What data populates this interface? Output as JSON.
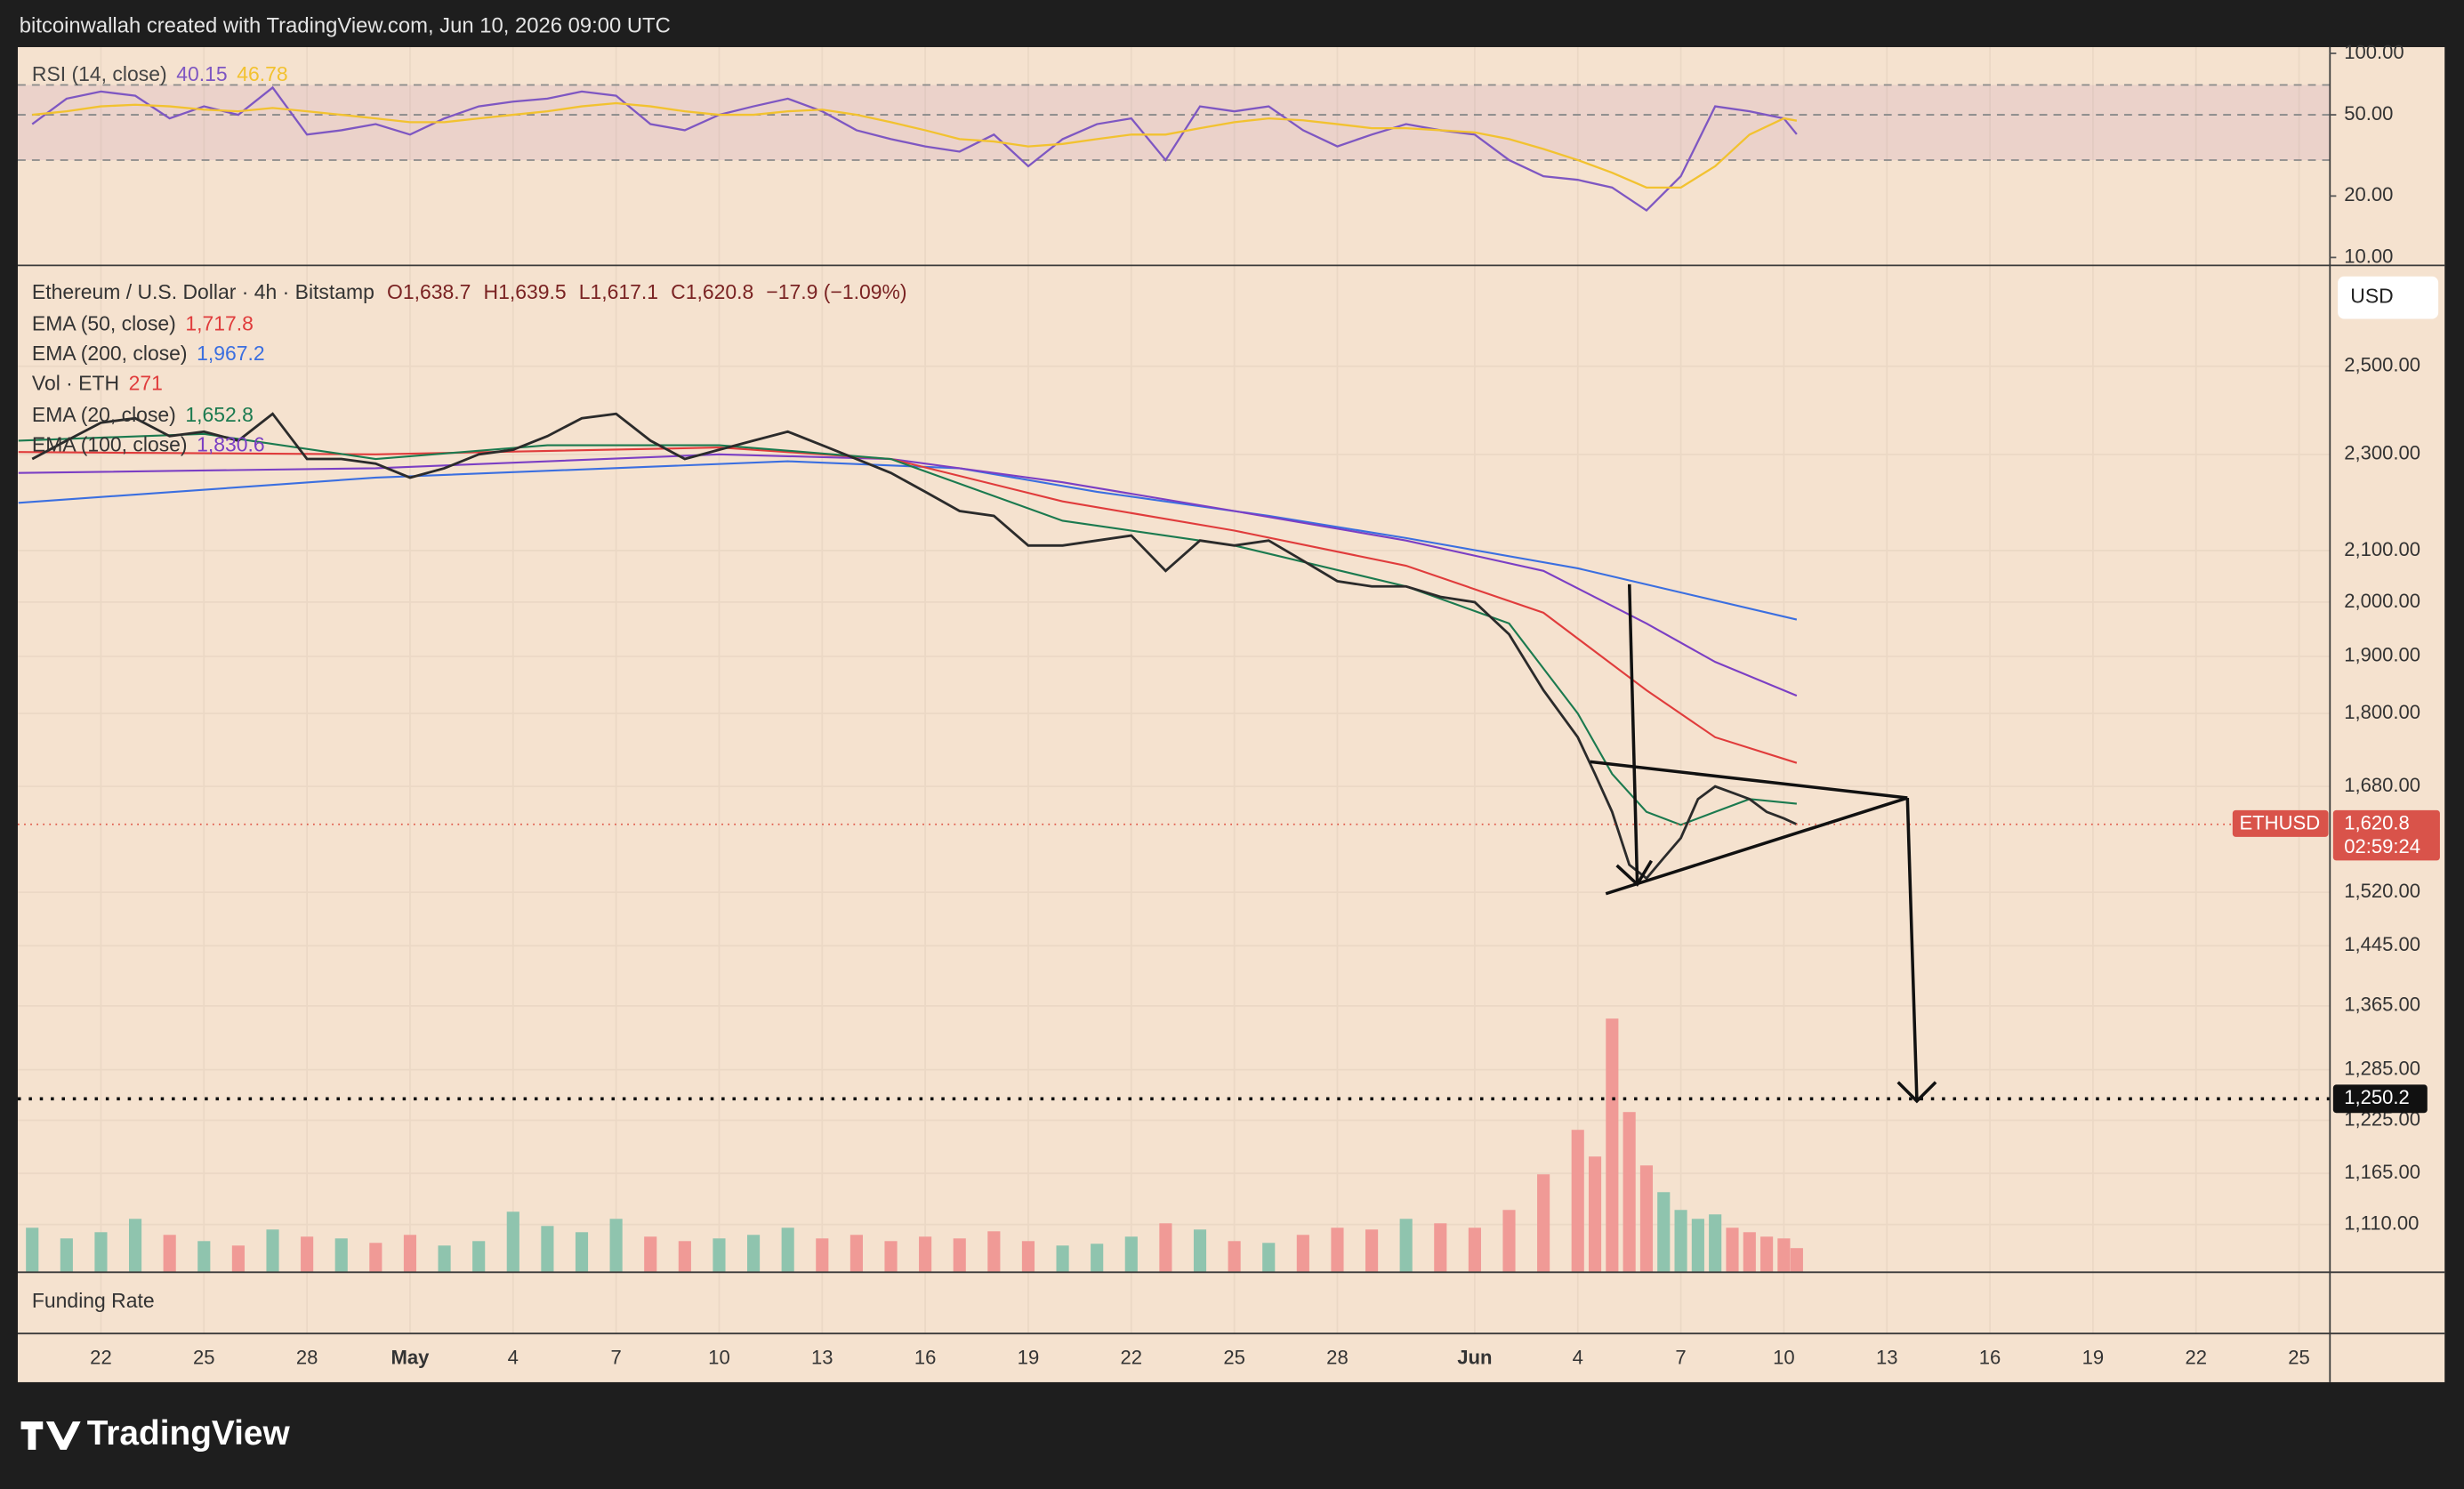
{
  "header": "bitcoinwallah created with TradingView.com, Jun 10, 2026 09:00 UTC",
  "footer_logo": "TradingView",
  "chart_data": {
    "type": "line",
    "title": "Ethereum / U.S. Dollar · 4h · Bitstamp",
    "ohlc_labels": [
      "O1,638.7",
      "H1,639.5",
      "L1,617.1",
      "C1,620.8",
      "−17.9 (−1.09%)"
    ],
    "currency": "USD",
    "countdown": "02:59:24",
    "funding_label": "Funding Rate",
    "xlim": [
      19.58,
      86.9
    ],
    "xticks": [
      22,
      25,
      28,
      {
        "value": 31,
        "label": "May"
      },
      {
        "value": 34,
        "label": "4"
      },
      {
        "value": 37,
        "label": "7"
      },
      {
        "value": 40,
        "label": "10"
      },
      {
        "value": 43,
        "label": "13"
      },
      {
        "value": 46,
        "label": "16"
      },
      {
        "value": 49,
        "label": "19"
      },
      {
        "value": 52,
        "label": "22"
      },
      {
        "value": 55,
        "label": "25"
      },
      {
        "value": 58,
        "label": "28"
      },
      {
        "value": 62,
        "label": "Jun"
      },
      {
        "value": 65,
        "label": "4"
      },
      {
        "value": 68,
        "label": "7"
      },
      {
        "value": 71,
        "label": "10"
      },
      {
        "value": 74,
        "label": "13"
      },
      {
        "value": 77,
        "label": "16"
      },
      {
        "value": 80,
        "label": "19"
      },
      {
        "value": 83,
        "label": "22"
      },
      {
        "value": 86,
        "label": "25"
      }
    ],
    "ylim": [
      1061,
      2746
    ],
    "log_scale": true,
    "grid": true,
    "yticks": [
      {
        "value": 2500,
        "label": "2,500.00"
      },
      {
        "value": 2300,
        "label": "2,300.00"
      },
      {
        "value": 2100,
        "label": "2,100.00"
      },
      {
        "value": 2000,
        "label": "2,000.00"
      },
      {
        "value": 1900,
        "label": "1,900.00"
      },
      {
        "value": 1800,
        "label": "1,800.00"
      },
      {
        "value": 1680,
        "label": "1,680.00"
      },
      {
        "value": 1520,
        "label": "1,520.00"
      },
      {
        "value": 1445,
        "label": "1,445.00"
      },
      {
        "value": 1365,
        "label": "1,365.00"
      },
      {
        "value": 1285,
        "label": "1,285.00"
      },
      {
        "value": 1225,
        "label": "1,225.00"
      },
      {
        "value": 1165,
        "label": "1,165.00"
      },
      {
        "value": 1110,
        "label": "1,110.00"
      }
    ],
    "target": {
      "value": 1250.2,
      "label": "1,250.2"
    },
    "series": [
      {
        "name": "ETHUSD",
        "color": "#2b2b2b",
        "last_label": "1,620.8",
        "x": [
          20,
          21,
          22,
          23,
          24,
          25,
          26,
          27,
          28,
          29,
          30,
          31,
          32,
          33,
          34,
          35,
          36,
          37,
          38,
          39,
          40,
          41,
          42,
          43,
          44,
          45,
          46,
          47,
          48,
          49,
          50,
          51,
          52,
          53,
          54,
          55,
          56,
          57,
          58,
          59,
          60,
          61,
          62,
          63,
          64,
          65,
          65.5,
          66,
          66.5,
          67,
          67.5,
          68,
          68.5,
          69,
          69.5,
          70,
          70.5,
          71,
          71.375
        ],
        "values": [
          2290,
          2330,
          2370,
          2380,
          2340,
          2350,
          2330,
          2390,
          2290,
          2290,
          2280,
          2250,
          2270,
          2300,
          2310,
          2340,
          2380,
          2390,
          2330,
          2290,
          2310,
          2330,
          2350,
          2320,
          2290,
          2260,
          2220,
          2180,
          2170,
          2110,
          2110,
          2120,
          2130,
          2060,
          2120,
          2110,
          2120,
          2080,
          2040,
          2030,
          2030,
          2010,
          2000,
          1940,
          1840,
          1760,
          1700,
          1640,
          1560,
          1540,
          1570,
          1600,
          1660,
          1680,
          1670,
          1660,
          1640,
          1630,
          1620.8
        ]
      },
      {
        "name": "EMA (20, close)",
        "color": "#1b7a4f",
        "legend_value": "1,652.8",
        "x": [
          19.6,
          25,
          30,
          35,
          40,
          45,
          50,
          55,
          60,
          63,
          65,
          66,
          67,
          68,
          69,
          70,
          71.375
        ],
        "values": [
          2330,
          2345,
          2290,
          2320,
          2320,
          2290,
          2160,
          2110,
          2030,
          1960,
          1800,
          1700,
          1640,
          1620,
          1640,
          1660,
          1652.8
        ]
      },
      {
        "name": "EMA (50, close)",
        "color": "#e03c3c",
        "legend_value": "1,717.8",
        "x": [
          19.6,
          30,
          40,
          45,
          50,
          55,
          60,
          64,
          67,
          69,
          71.375
        ],
        "values": [
          2305,
          2300,
          2315,
          2290,
          2200,
          2140,
          2070,
          1980,
          1840,
          1760,
          1717.8
        ]
      },
      {
        "name": "EMA (100, close)",
        "color": "#7b3fc4",
        "legend_value": "1,830.6",
        "x": [
          19.6,
          30,
          40,
          45,
          50,
          55,
          60,
          64,
          67,
          69,
          71.375
        ],
        "values": [
          2260,
          2270,
          2300,
          2290,
          2240,
          2180,
          2120,
          2060,
          1960,
          1890,
          1830.6
        ]
      },
      {
        "name": "EMA (200, close)",
        "color": "#3b6fe0",
        "legend_value": "1,967.2",
        "x": [
          19.6,
          30,
          42,
          47,
          51,
          56,
          60,
          65,
          71.375
        ],
        "values": [
          2197,
          2250,
          2285,
          2270,
          2220,
          2170,
          2125,
          2065,
          1967.2
        ]
      }
    ],
    "volume": {
      "name": "Vol · ETH",
      "legend_value": "271",
      "vlim": [
        0,
        3000
      ],
      "up_color": "#8fc4ae",
      "down_color": "#f09a96",
      "values": [
        500,
        380,
        450,
        600,
        420,
        350,
        300,
        480,
        400,
        380,
        330,
        420,
        300,
        350,
        680,
        520,
        450,
        600,
        400,
        350,
        380,
        420,
        500,
        380,
        420,
        350,
        400,
        380,
        460,
        350,
        300,
        320,
        400,
        550,
        480,
        350,
        330,
        420,
        500,
        480,
        600,
        550,
        500,
        700,
        1100,
        1600,
        1300,
        2850,
        1800,
        1200,
        900,
        700,
        600,
        650,
        500,
        450,
        400,
        380,
        271
      ]
    },
    "rsi": {
      "name": "RSI (14, close)",
      "ylim": [
        9.3,
        107.3
      ],
      "log_scale": true,
      "yticks": [
        {
          "value": 100,
          "label": "100.00"
        },
        {
          "value": 50,
          "label": "50.00"
        },
        {
          "value": 20,
          "label": "20.00"
        },
        {
          "value": 10,
          "label": "10.00"
        }
      ],
      "levels": [
        70,
        50,
        30
      ],
      "x": [
        20,
        21,
        22,
        23,
        24,
        25,
        26,
        27,
        28,
        29,
        30,
        31,
        32,
        33,
        34,
        35,
        36,
        37,
        38,
        39,
        40,
        41,
        42,
        43,
        44,
        45,
        46,
        47,
        48,
        49,
        50,
        51,
        52,
        53,
        54,
        55,
        56,
        57,
        58,
        59,
        60,
        61,
        62,
        63,
        64,
        65,
        66,
        67,
        68,
        69,
        70,
        71,
        71.375
      ],
      "series": [
        {
          "color": "#7e57c2",
          "legend_value": "40.15",
          "values": [
            45,
            60,
            65,
            62,
            48,
            55,
            50,
            68,
            40,
            42,
            45,
            40,
            48,
            55,
            58,
            60,
            65,
            62,
            45,
            42,
            50,
            55,
            60,
            52,
            42,
            38,
            35,
            33,
            40,
            28,
            38,
            45,
            48,
            30,
            55,
            52,
            55,
            42,
            35,
            40,
            45,
            42,
            40,
            30,
            25,
            24,
            22,
            17,
            25,
            55,
            52,
            48,
            40.15
          ]
        },
        {
          "color": "#f2c230",
          "legend_value": "46.78",
          "values": [
            50,
            52,
            55,
            56,
            55,
            53,
            52,
            54,
            52,
            50,
            48,
            46,
            46,
            48,
            50,
            52,
            55,
            57,
            55,
            52,
            50,
            50,
            52,
            53,
            50,
            46,
            42,
            38,
            37,
            35,
            36,
            38,
            40,
            40,
            43,
            46,
            48,
            47,
            45,
            43,
            43,
            42,
            41,
            38,
            34,
            30,
            26,
            22,
            22,
            28,
            40,
            48,
            46.78
          ]
        }
      ]
    }
  }
}
